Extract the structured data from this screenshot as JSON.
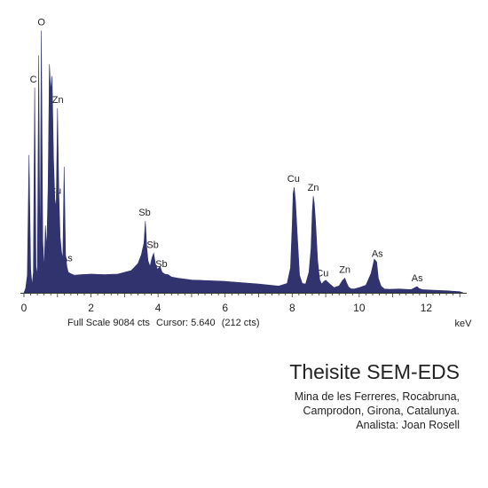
{
  "chart_data": {
    "type": "area",
    "title": "",
    "xlabel": "keV",
    "ylabel": "",
    "xlim": [
      0,
      13.1
    ],
    "ylim": [
      0,
      9084
    ],
    "x_ticks": [
      0,
      2,
      4,
      6,
      8,
      10,
      12
    ],
    "x_tick_labels": [
      "0",
      "2",
      "4",
      "6",
      "8",
      "10",
      "12"
    ],
    "fill_color": "#31336e",
    "series": [
      {
        "values_kev": [
          0.0,
          0.05,
          0.1,
          0.15,
          0.2,
          0.24,
          0.28,
          0.32,
          0.36,
          0.4,
          0.44,
          0.48,
          0.52,
          0.56,
          0.6,
          0.64,
          0.68,
          0.72,
          0.76,
          0.8,
          0.84,
          0.88,
          0.92,
          0.96,
          1.0,
          1.04,
          1.08,
          1.12,
          1.16,
          1.2,
          1.24,
          1.28,
          1.32,
          1.4,
          1.5,
          1.7,
          2.0,
          2.4,
          2.8,
          3.2,
          3.4,
          3.5,
          3.58,
          3.62,
          3.66,
          3.7,
          3.76,
          3.82,
          3.87,
          3.92,
          3.98,
          4.06,
          4.12,
          4.2,
          4.3,
          4.4,
          4.6,
          5.0,
          6.0,
          7.0,
          7.6,
          7.85,
          7.95,
          8.0,
          8.03,
          8.06,
          8.1,
          8.15,
          8.22,
          8.3,
          8.4,
          8.5,
          8.56,
          8.6,
          8.63,
          8.66,
          8.7,
          8.76,
          8.82,
          8.88,
          8.94,
          9.0,
          9.1,
          9.25,
          9.4,
          9.5,
          9.57,
          9.62,
          9.68,
          9.75,
          9.85,
          10.0,
          10.2,
          10.35,
          10.45,
          10.52,
          10.57,
          10.65,
          10.75,
          10.9,
          11.2,
          11.55,
          11.7,
          11.73,
          11.78,
          11.88,
          12.2,
          12.6,
          13.0,
          13.1
        ],
        "values_cts": [
          0,
          150,
          600,
          4700,
          800,
          250,
          700,
          7000,
          900,
          600,
          8100,
          900,
          8950,
          1800,
          800,
          2300,
          1500,
          3600,
          7800,
          6900,
          7400,
          4600,
          3200,
          2900,
          6300,
          3400,
          1900,
          1400,
          1150,
          4300,
          1300,
          900,
          700,
          650,
          600,
          620,
          640,
          620,
          640,
          760,
          1000,
          1300,
          1700,
          2450,
          1600,
          1100,
          900,
          1200,
          1350,
          1000,
          800,
          900,
          700,
          640,
          620,
          540,
          500,
          440,
          390,
          300,
          230,
          320,
          850,
          2300,
          3400,
          3600,
          3100,
          2000,
          600,
          320,
          300,
          700,
          1500,
          2800,
          3300,
          3050,
          2400,
          1100,
          450,
          300,
          380,
          430,
          320,
          180,
          240,
          420,
          500,
          350,
          200,
          140,
          130,
          180,
          260,
          650,
          1150,
          1050,
          500,
          230,
          130,
          120,
          130,
          110,
          200,
          210,
          150,
          110,
          90,
          70,
          40,
          0
        ]
      }
    ],
    "annotations": [
      {
        "label": "C",
        "kev": 0.28
      },
      {
        "label": "O",
        "kev": 0.52
      },
      {
        "label": "Zn",
        "kev": 1.01
      },
      {
        "label": "Cu",
        "kev": 0.93
      },
      {
        "label": "As",
        "kev": 1.28
      },
      {
        "label": "Sb",
        "kev": 3.6
      },
      {
        "label": "Sb",
        "kev": 3.84
      },
      {
        "label": "Sb",
        "kev": 4.1
      },
      {
        "label": "Cu",
        "kev": 8.04
      },
      {
        "label": "Zn",
        "kev": 8.63
      },
      {
        "label": "Cu",
        "kev": 8.9
      },
      {
        "label": "Zn",
        "kev": 9.57
      },
      {
        "label": "As",
        "kev": 10.54
      },
      {
        "label": "As",
        "kev": 11.73
      }
    ]
  },
  "status": {
    "full_scale": "Full Scale 9084 cts",
    "cursor": "Cursor: 5.640",
    "cursor_cts": "(212 cts)"
  },
  "caption": {
    "title": "Theisite SEM-EDS",
    "line1": "Mina de les Ferreres, Rocabruna,",
    "line2": "Camprodon, Girona, Catalunya.",
    "line3": "Analista: Joan Rosell"
  }
}
